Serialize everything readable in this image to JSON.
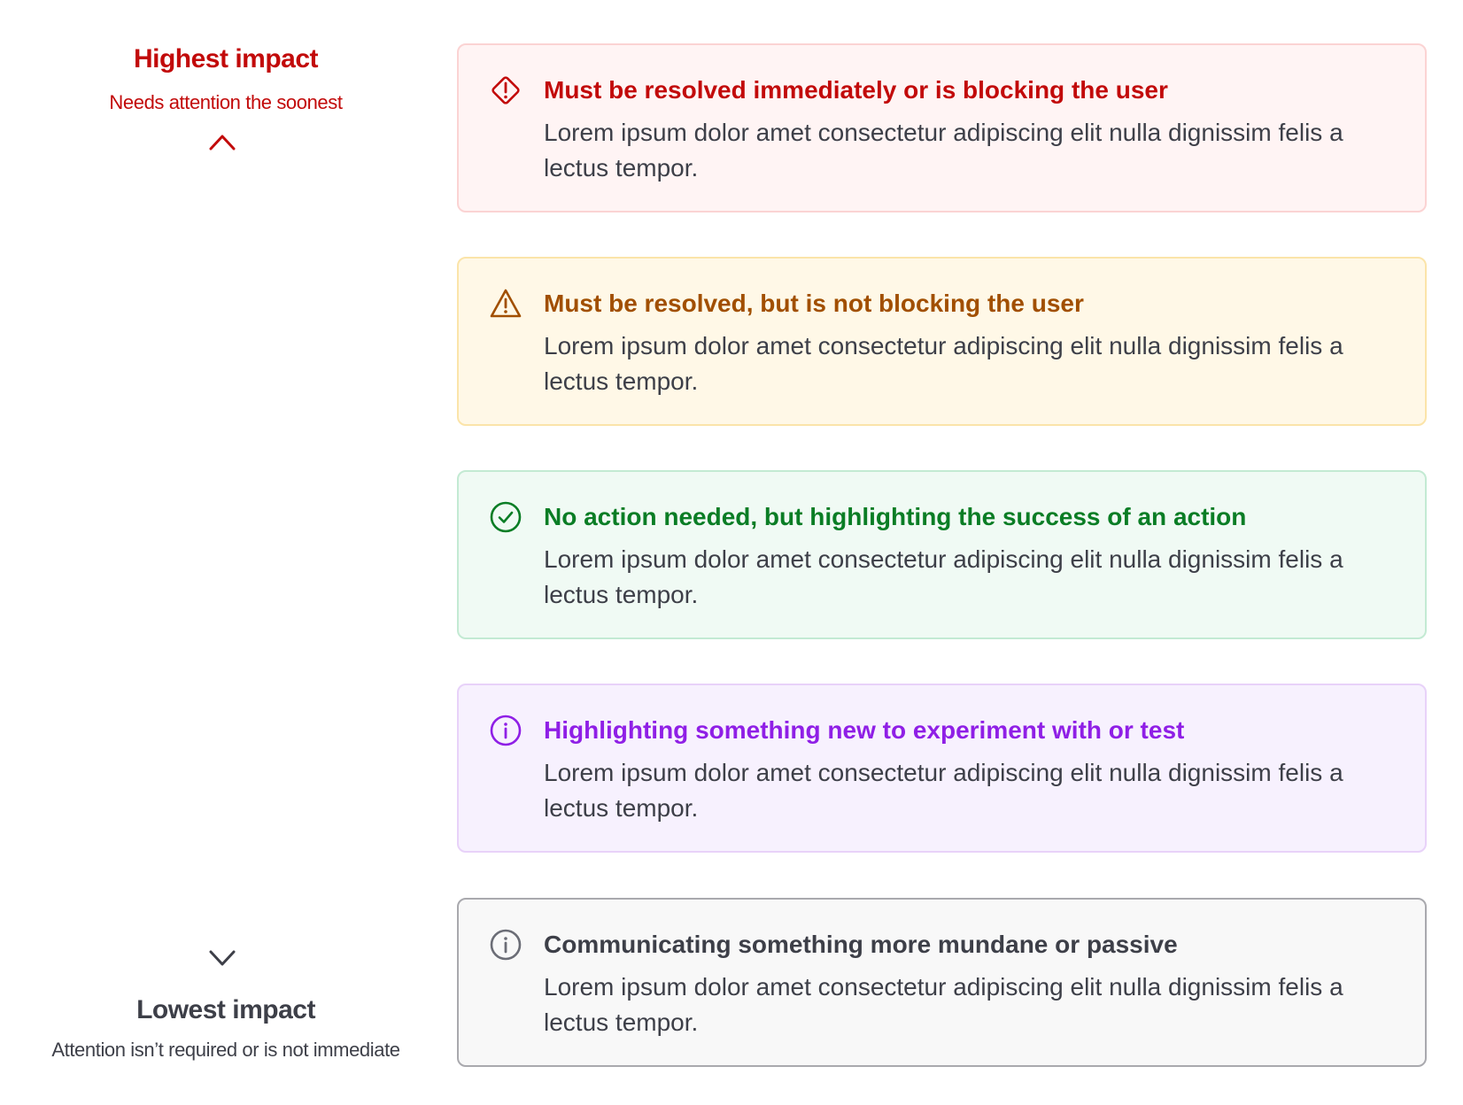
{
  "scale": {
    "top": {
      "title": "Highest impact",
      "subtitle": "Needs attention the soonest"
    },
    "bottom": {
      "title": "Lowest impact",
      "subtitle": "Attention isn’t required or is not immediate"
    }
  },
  "alerts": [
    {
      "variant": "critical",
      "icon": "diamond-exclamation-icon",
      "title": "Must be resolved immediately or is blocking the user",
      "body": "Lorem ipsum dolor amet consectetur adipiscing elit nulla dignissim felis a lectus tempor.",
      "accent": "#c20a0a",
      "background": "#fff4f4",
      "border": "#fbd3d3"
    },
    {
      "variant": "warning",
      "icon": "warning-triangle-icon",
      "title": "Must be resolved, but is not blocking the user",
      "body": "Lorem ipsum dolor amet consectetur adipiscing elit nulla dignissim felis a lectus tempor.",
      "accent": "#a14f00",
      "background": "#fff8e7",
      "border": "#fbe4a9"
    },
    {
      "variant": "success",
      "icon": "check-circle-icon",
      "title": "No action needed, but highlighting the success of an action",
      "body": "Lorem ipsum dolor amet consectetur adipiscing elit nulla dignissim felis a lectus tempor.",
      "accent": "#0a7d25",
      "background": "#f0faf4",
      "border": "#c3ead3"
    },
    {
      "variant": "discovery",
      "icon": "info-circle-icon",
      "title": "Highlighting something new to experiment with or test",
      "body": "Lorem ipsum dolor amet consectetur adipiscing elit nulla dignissim felis a lectus tempor.",
      "accent": "#8f1fe6",
      "background": "#f7f1fe",
      "border": "#e8d2f9"
    },
    {
      "variant": "neutral",
      "icon": "info-circle-icon",
      "title": "Communicating something more mundane or passive",
      "body": "Lorem ipsum dolor amet consectetur adipiscing elit nulla dignissim felis a lectus tempor.",
      "accent": "#3d3f48",
      "iconColor": "#6b6d76",
      "background": "#f8f8f8",
      "border": "#a9a9ae"
    }
  ]
}
